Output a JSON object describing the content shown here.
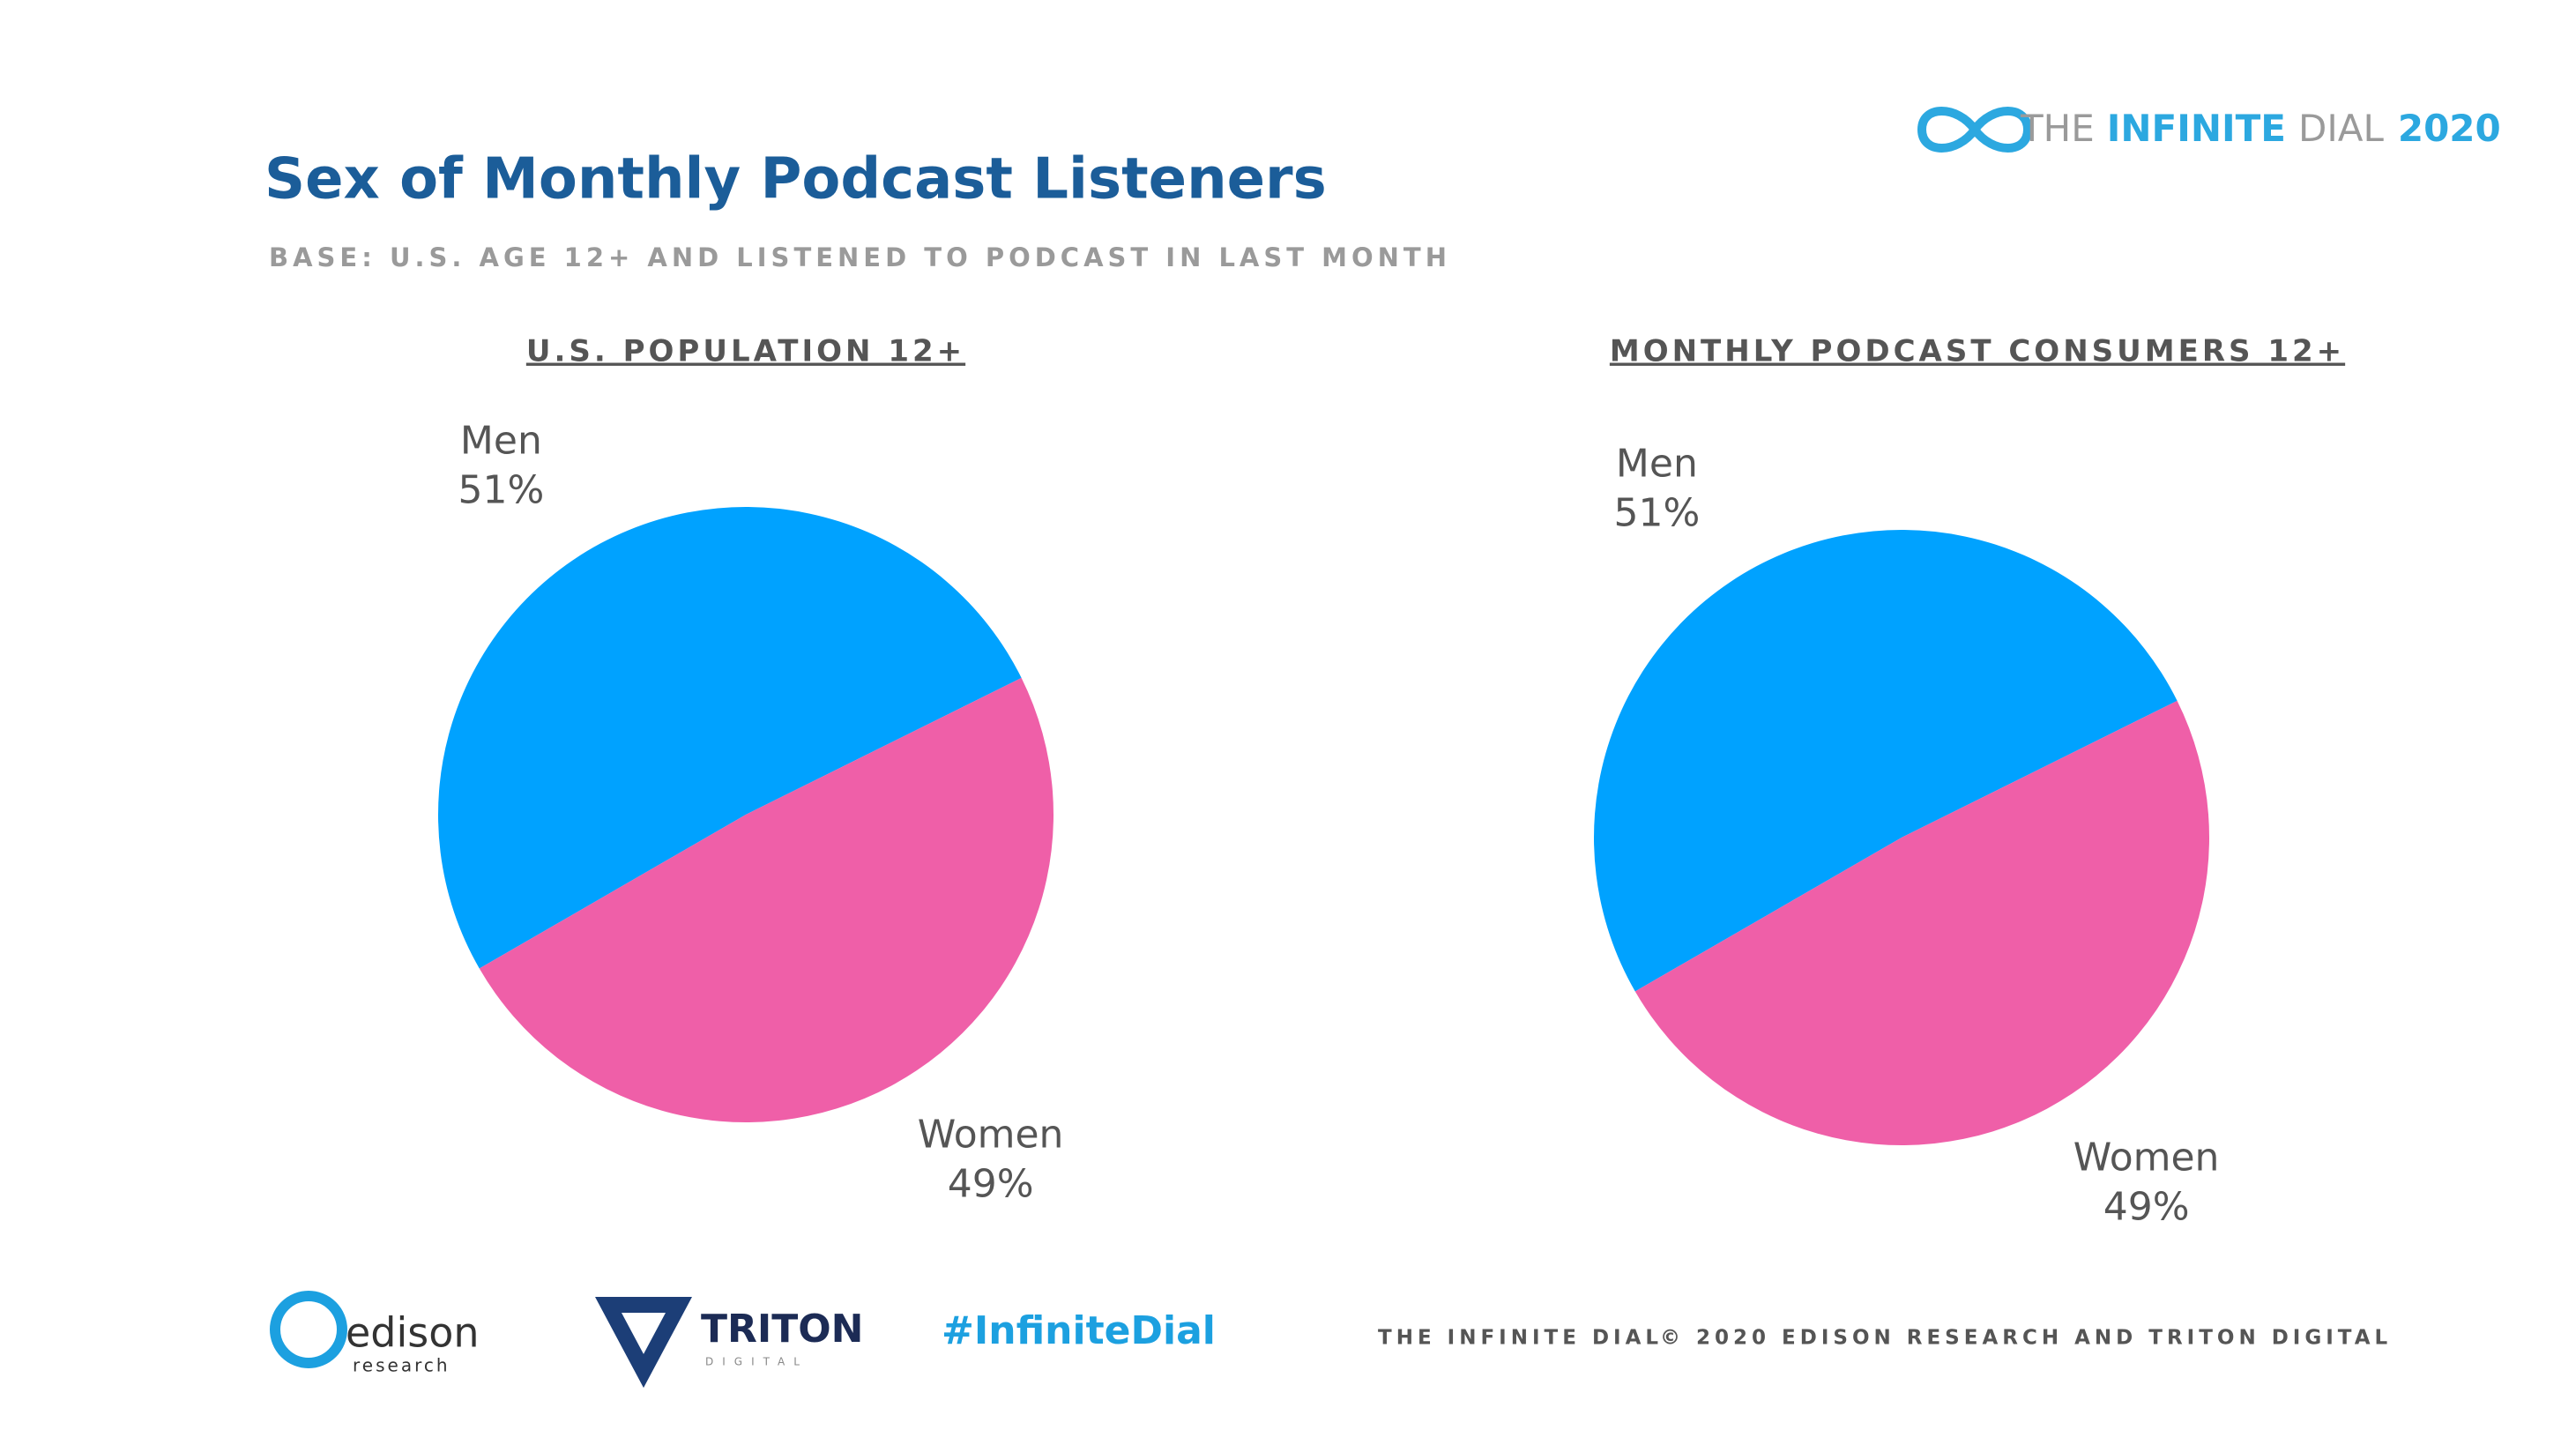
{
  "title": "Sex of Monthly Podcast Listeners",
  "subtitle": "BASE: U.S. AGE 12+ AND LISTENED TO PODCAST IN LAST MONTH",
  "brand": {
    "the": "THE",
    "infinite": "INFINITE",
    "dial": "DIAL",
    "year": "2020"
  },
  "chart_data": [
    {
      "type": "pie",
      "title": "U.S. POPULATION 12+",
      "categories": [
        "Men",
        "Women"
      ],
      "values": [
        51,
        49
      ],
      "value_labels": [
        "51%",
        "49%"
      ],
      "colors": [
        "#00a2ff",
        "#ef5fa8"
      ]
    },
    {
      "type": "pie",
      "title": "MONTHLY PODCAST CONSUMERS 12+",
      "categories": [
        "Men",
        "Women"
      ],
      "values": [
        51,
        49
      ],
      "value_labels": [
        "51%",
        "49%"
      ],
      "colors": [
        "#00a2ff",
        "#ef5fa8"
      ]
    }
  ],
  "footer": {
    "edison": "edison",
    "research": "research",
    "triton": "TRITON",
    "digital": "DIGITAL",
    "hashtag": "#InfiniteDial",
    "dial": "THE INFINITE DIAL",
    "copyright": "© 2020 EDISON RESEARCH AND TRITON DIGITAL"
  }
}
